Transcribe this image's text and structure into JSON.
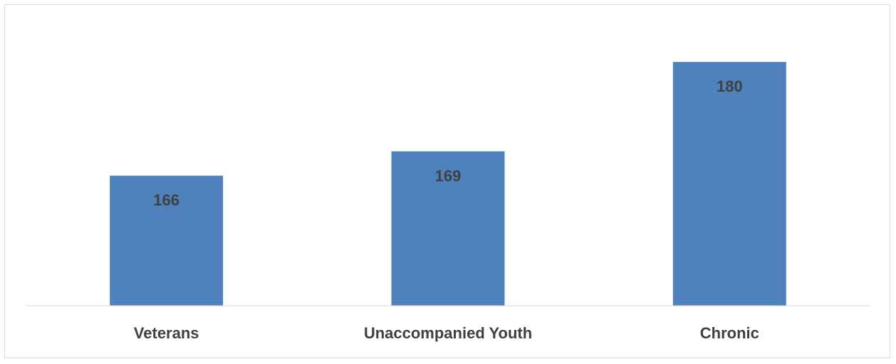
{
  "chart_data": {
    "type": "bar",
    "categories": [
      "Veterans",
      "Unaccompanied Youth",
      "Chronic"
    ],
    "values": [
      166,
      169,
      180
    ],
    "title": "",
    "xlabel": "",
    "ylabel": "",
    "ylim": [
      150,
      185
    ],
    "grid": false,
    "legend": "none",
    "data_labels": [
      "166",
      "169",
      "180"
    ],
    "bar_color": "#4f81bd",
    "label_color": "#404040",
    "axis_color": "#d9d9d9"
  }
}
